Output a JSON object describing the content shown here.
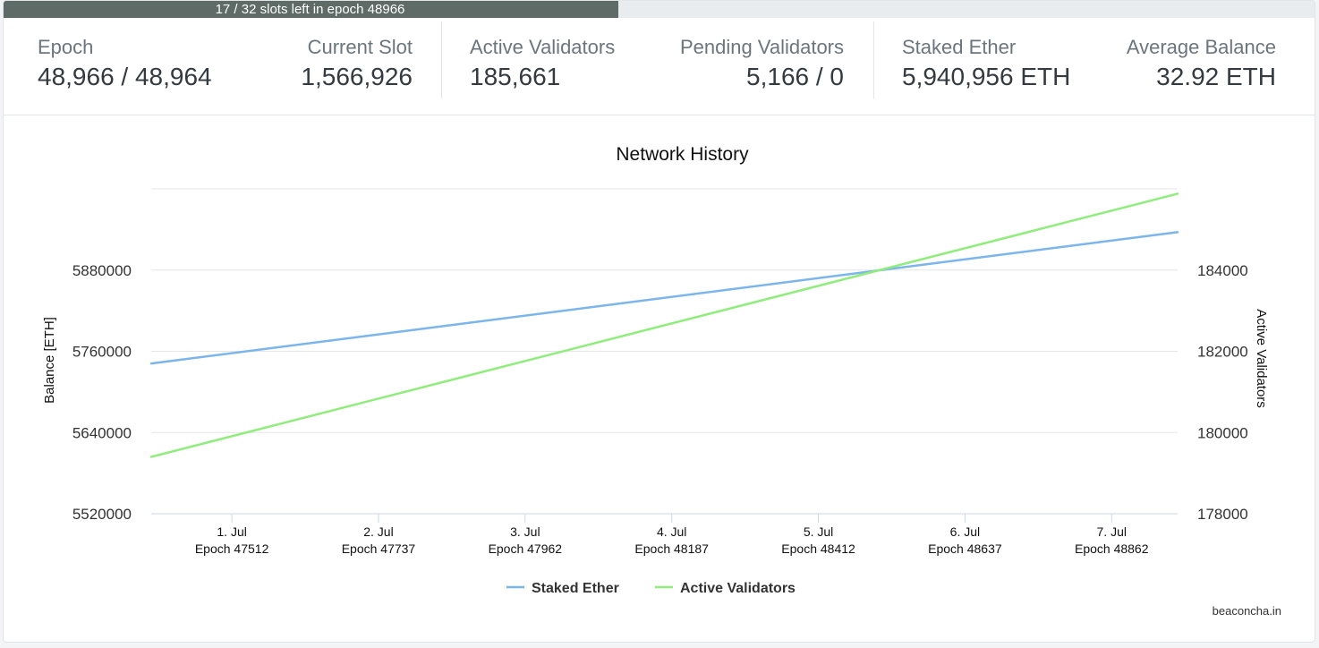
{
  "progress": {
    "text": "17 / 32 slots left in epoch 48966",
    "fraction": 0.469
  },
  "stats": {
    "epoch": {
      "label": "Epoch",
      "value": "48,966 / 48,964"
    },
    "current_slot": {
      "label": "Current Slot",
      "value": "1,566,926"
    },
    "active_validators": {
      "label": "Active Validators",
      "value": "185,661"
    },
    "pending_validators": {
      "label": "Pending Validators",
      "value": "5,166 / 0"
    },
    "staked_ether": {
      "label": "Staked Ether",
      "value": "5,940,956 ETH"
    },
    "average_balance": {
      "label": "Average Balance",
      "value": "32.92 ETH"
    }
  },
  "chart_data": {
    "type": "line",
    "title": "Network History",
    "x": [
      0.45,
      7.45
    ],
    "x_ticks": [
      {
        "x": 1,
        "label": "1. Jul",
        "sublabel": "Epoch 47512"
      },
      {
        "x": 2,
        "label": "2. Jul",
        "sublabel": "Epoch 47737"
      },
      {
        "x": 3,
        "label": "3. Jul",
        "sublabel": "Epoch 47962"
      },
      {
        "x": 4,
        "label": "4. Jul",
        "sublabel": "Epoch 48187"
      },
      {
        "x": 5,
        "label": "5. Jul",
        "sublabel": "Epoch 48412"
      },
      {
        "x": 6,
        "label": "6. Jul",
        "sublabel": "Epoch 48637"
      },
      {
        "x": 7,
        "label": "7. Jul",
        "sublabel": "Epoch 48862"
      }
    ],
    "xlim": [
      0.45,
      7.45
    ],
    "y_left": {
      "label": "Balance [ETH]",
      "ticks": [
        5520000,
        5640000,
        5760000,
        5880000
      ],
      "lim": [
        5520000,
        6000000
      ]
    },
    "y_right": {
      "label": "Active Validators",
      "ticks": [
        178000,
        180000,
        182000,
        184000
      ],
      "lim": [
        178000,
        186000
      ]
    },
    "series": [
      {
        "name": "Staked Ether",
        "axis": "left",
        "color": "#7cb5ec",
        "values": [
          5742000,
          5936000
        ]
      },
      {
        "name": "Active Validators",
        "axis": "right",
        "color": "#90ed7d",
        "values": [
          179400,
          185880
        ]
      }
    ],
    "grid": true,
    "legend_position": "bottom-center"
  },
  "credit": "beaconcha.in"
}
